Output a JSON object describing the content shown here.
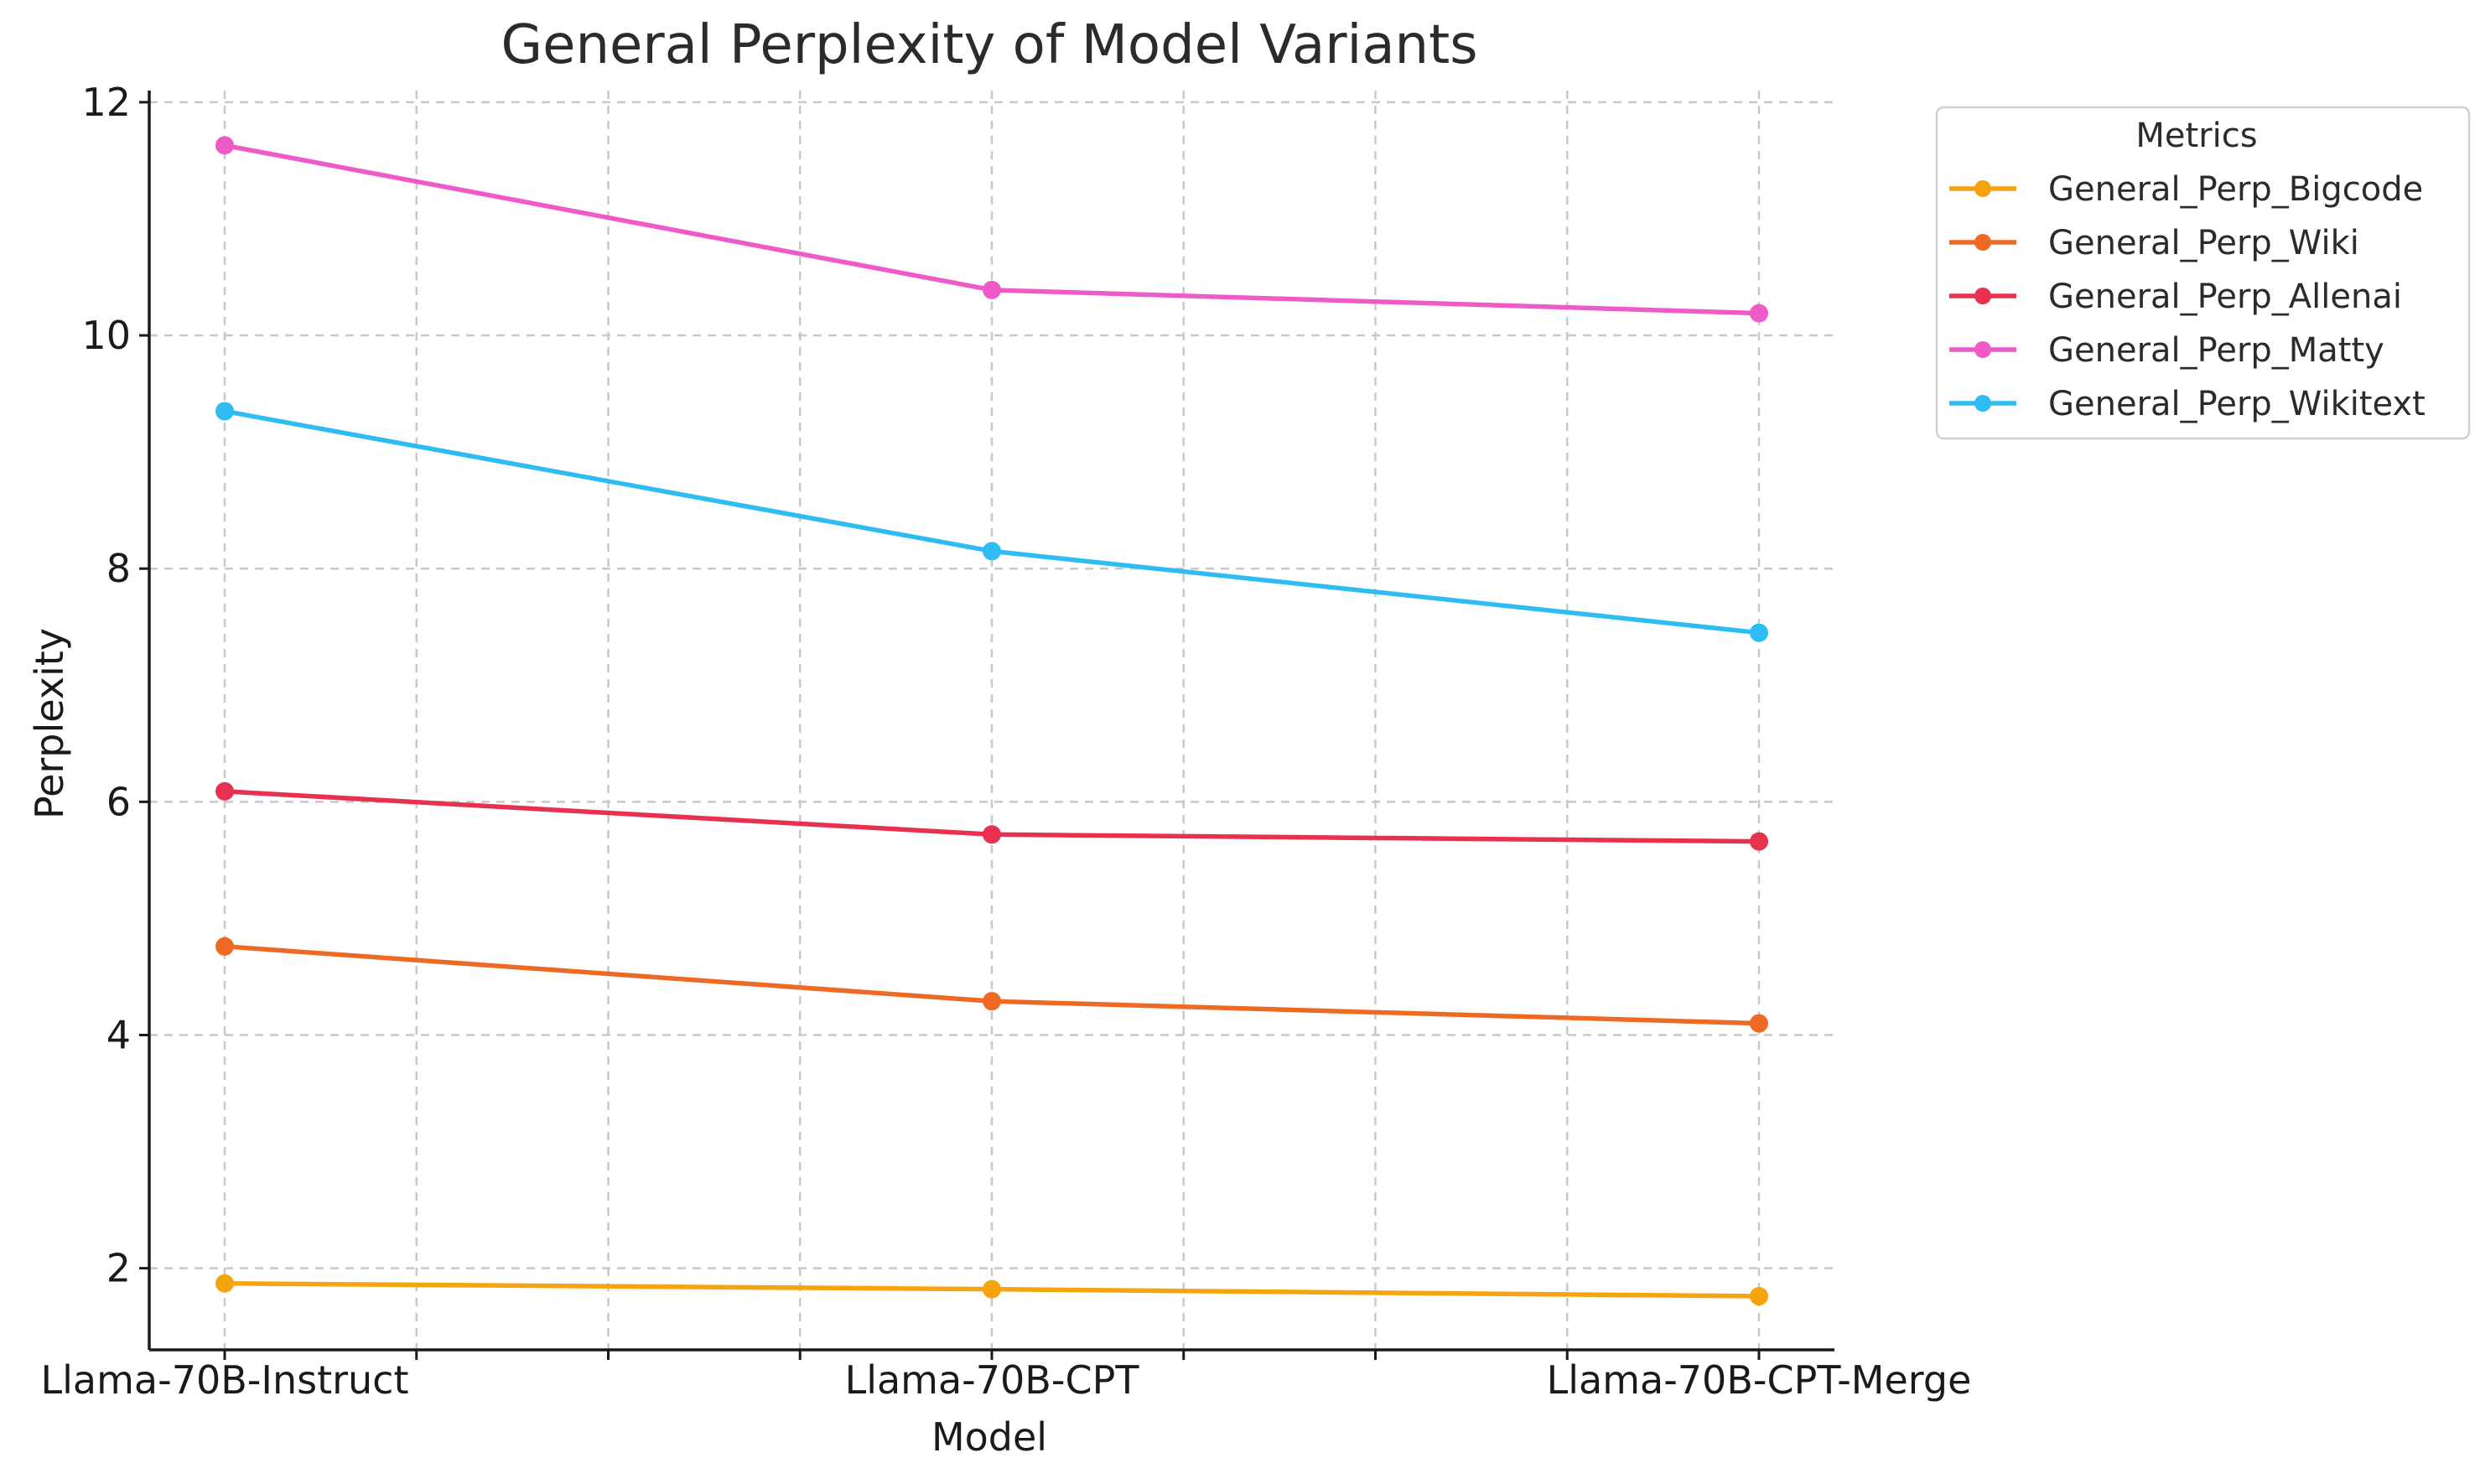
{
  "chart_data": {
    "type": "line",
    "title": "General Perplexity of Model Variants",
    "xlabel": "Model",
    "ylabel": "Perplexity",
    "categories": [
      "Llama-70B-Instruct",
      "Llama-70B-CPT",
      "Llama-70B-CPT-Merge"
    ],
    "ylim": [
      1.3,
      12.1
    ],
    "yticks": [
      2,
      4,
      6,
      8,
      10,
      12
    ],
    "grid": true,
    "legend": {
      "title": "Metrics",
      "placement": "outside-top-right"
    },
    "series": [
      {
        "name": "General_Perp_Bigcode",
        "color": "#f5a40f",
        "values": [
          1.87,
          1.82,
          1.76
        ]
      },
      {
        "name": "General_Perp_Wiki",
        "color": "#ee6a24",
        "values": [
          4.76,
          4.29,
          4.1
        ]
      },
      {
        "name": "General_Perp_Allenai",
        "color": "#e8304f",
        "values": [
          6.09,
          5.72,
          5.66
        ]
      },
      {
        "name": "General_Perp_Matty",
        "color": "#ee5bc9",
        "values": [
          11.63,
          10.39,
          10.19
        ]
      },
      {
        "name": "General_Perp_Wikitext",
        "color": "#2fbcf3",
        "values": [
          9.35,
          8.15,
          7.45
        ]
      }
    ]
  }
}
